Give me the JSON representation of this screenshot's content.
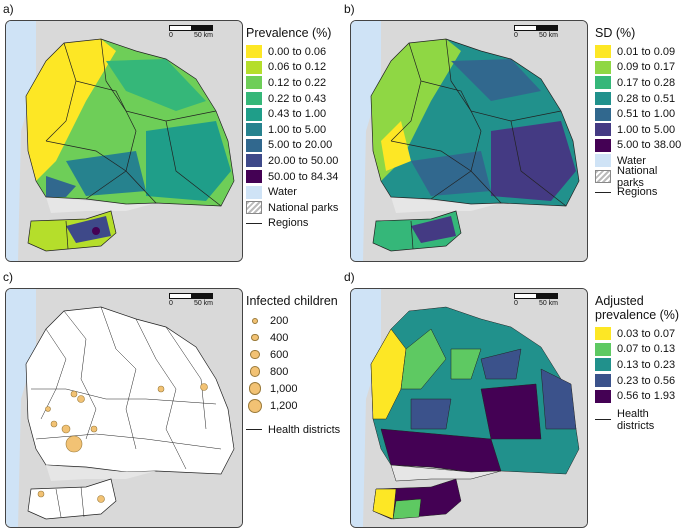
{
  "panels": {
    "a": {
      "label": "a)",
      "legend_title": "Prevalence (%)",
      "items": [
        {
          "label": "0.00 to 0.06",
          "color": "#fde725"
        },
        {
          "label": "0.06 to 0.12",
          "color": "#b5de2b"
        },
        {
          "label": "0.12 to 0.22",
          "color": "#6ece58"
        },
        {
          "label": "0.22 to 0.43",
          "color": "#35b779"
        },
        {
          "label": "0.43 to 1.00",
          "color": "#1f9e89"
        },
        {
          "label": "1.00 to 5.00",
          "color": "#26828e"
        },
        {
          "label": "5.00 to 20.00",
          "color": "#31688e"
        },
        {
          "label": "20.00 to 50.00",
          "color": "#3e4989"
        },
        {
          "label": "50.00 to 84.34",
          "color": "#440154"
        }
      ],
      "water": "Water",
      "parks": "National parks",
      "regions": "Regions",
      "scale": {
        "zero": "0",
        "dist": "50 km"
      }
    },
    "b": {
      "label": "b)",
      "legend_title": "SD (%)",
      "items": [
        {
          "label": "0.01 to 0.09",
          "color": "#fde725"
        },
        {
          "label": "0.09 to 0.17",
          "color": "#8fd744"
        },
        {
          "label": "0.17 to 0.28",
          "color": "#35b779"
        },
        {
          "label": "0.28 to 0.51",
          "color": "#21918c"
        },
        {
          "label": "0.51 to 1.00",
          "color": "#31688e"
        },
        {
          "label": "1.00 to 5.00",
          "color": "#443a83"
        },
        {
          "label": "5.00 to 38.00",
          "color": "#440154"
        }
      ],
      "water": "Water",
      "parks": "National parks",
      "regions": "Regions",
      "scale": {
        "zero": "0",
        "dist": "50 km"
      }
    },
    "c": {
      "label": "c)",
      "legend_title": "Infected children",
      "sizes": [
        "200",
        "400",
        "600",
        "800",
        "1,000",
        "1,200"
      ],
      "districts": "Health districts",
      "scale": {
        "zero": "0",
        "dist": "50 km"
      }
    },
    "d": {
      "label": "d)",
      "legend_title_1": "Adjusted",
      "legend_title_2": "prevalence (%)",
      "items": [
        {
          "label": "0.03 to 0.07",
          "color": "#fde725"
        },
        {
          "label": "0.07 to 0.13",
          "color": "#5ec962"
        },
        {
          "label": "0.13 to 0.23",
          "color": "#21918c"
        },
        {
          "label": "0.23 to 0.56",
          "color": "#3b528b"
        },
        {
          "label": "0.56 to 1.93",
          "color": "#440154"
        }
      ],
      "districts": "Health districts",
      "scale": {
        "zero": "0",
        "dist": "50 km"
      }
    }
  },
  "colors": {
    "water": "#cfe3f6",
    "land": "#d9d9d9",
    "ocean": "#cfe3f6",
    "bubble": "#f2c274"
  }
}
